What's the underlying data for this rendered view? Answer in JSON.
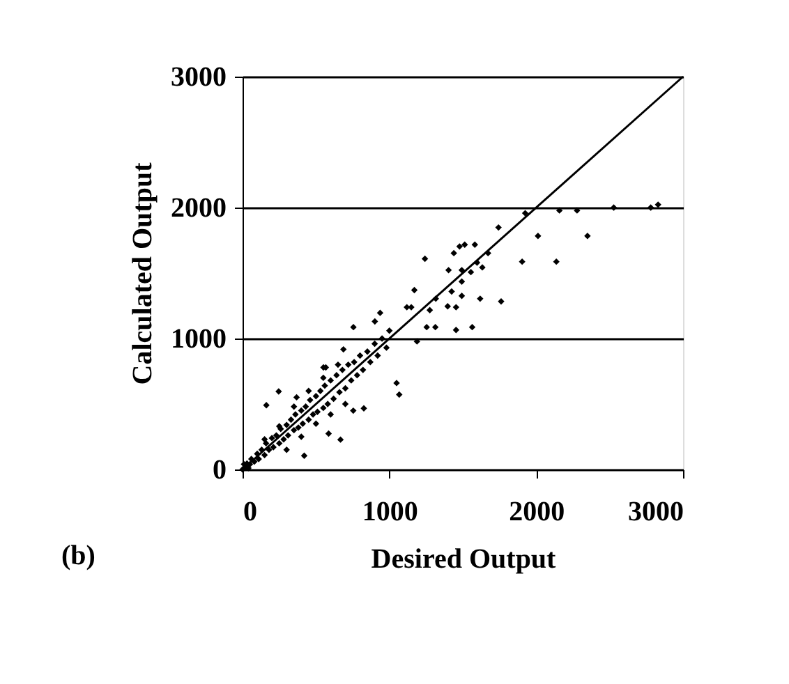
{
  "chart_data": {
    "type": "scatter",
    "xlabel": "Desired Output",
    "ylabel": "Calculated Output",
    "annotations": [
      "(b)"
    ],
    "xlim": [
      0,
      3000
    ],
    "ylim": [
      0,
      3000
    ],
    "xticks": [
      0,
      1000,
      2000,
      3000
    ],
    "yticks": [
      0,
      1000,
      2000,
      3000
    ],
    "grid": "y",
    "series": [
      {
        "type": "scatter",
        "color": "#000000",
        "marker": "diamond",
        "x": [
          0,
          10,
          40,
          20,
          30,
          50,
          60,
          80,
          100,
          110,
          130,
          150,
          160,
          180,
          200,
          210,
          230,
          250,
          260,
          280,
          300,
          310,
          330,
          350,
          360,
          380,
          400,
          410,
          430,
          450,
          460,
          480,
          500,
          510,
          530,
          550,
          560,
          580,
          600,
          620,
          640,
          660,
          680,
          700,
          720,
          740,
          760,
          780,
          800,
          820,
          850,
          870,
          900,
          920,
          950,
          980,
          1000,
          300,
          400,
          500,
          250,
          150,
          350,
          450,
          550,
          650,
          700,
          600,
          162,
          246,
          368,
          551,
          667,
          754,
          826,
          1049,
          1067,
          420,
          586,
          567,
          687,
          755,
          901,
          937,
          1119,
          1149,
          1170,
          1188,
          1242,
          1254,
          1275,
          1313,
          1316,
          1397,
          1403,
          1424,
          1439,
          1454,
          1454,
          1478,
          1493,
          1493,
          1493,
          1513,
          1555,
          1564,
          1582,
          1597,
          1618,
          1633,
          1672,
          1743,
          1761,
          1904,
          1925,
          2012,
          2137,
          2158,
          2278,
          2349,
          2528,
          2780,
          2830
        ],
        "values": [
          0,
          40,
          10,
          15,
          45,
          40,
          80,
          60,
          120,
          80,
          150,
          110,
          200,
          150,
          240,
          170,
          260,
          200,
          310,
          230,
          340,
          260,
          380,
          300,
          420,
          320,
          450,
          350,
          480,
          380,
          530,
          420,
          560,
          440,
          600,
          470,
          640,
          500,
          680,
          540,
          720,
          590,
          760,
          620,
          800,
          680,
          820,
          720,
          870,
          760,
          900,
          820,
          960,
          870,
          1000,
          930,
          1060,
          150,
          250,
          350,
          330,
          230,
          480,
          600,
          700,
          800,
          500,
          420,
          491,
          596,
          551,
          779,
          228,
          449,
          467,
          660,
          572,
          105,
          274,
          779,
          917,
          1087,
          1130,
          1196,
          1239,
          1239,
          1370,
          978,
          1609,
          1087,
          1217,
          1087,
          1304,
          1246,
          1522,
          1359,
          1652,
          1239,
          1065,
          1703,
          1522,
          1435,
          1326,
          1717,
          1507,
          1087,
          1717,
          1580,
          1304,
          1543,
          1652,
          1848,
          1283,
          1587,
          1957,
          1783,
          1587,
          1978,
          1978,
          1783,
          2000,
          2000,
          2022
        ]
      },
      {
        "type": "line",
        "color": "#000000",
        "x": [
          0,
          3000
        ],
        "values": [
          0,
          3000
        ]
      }
    ]
  }
}
